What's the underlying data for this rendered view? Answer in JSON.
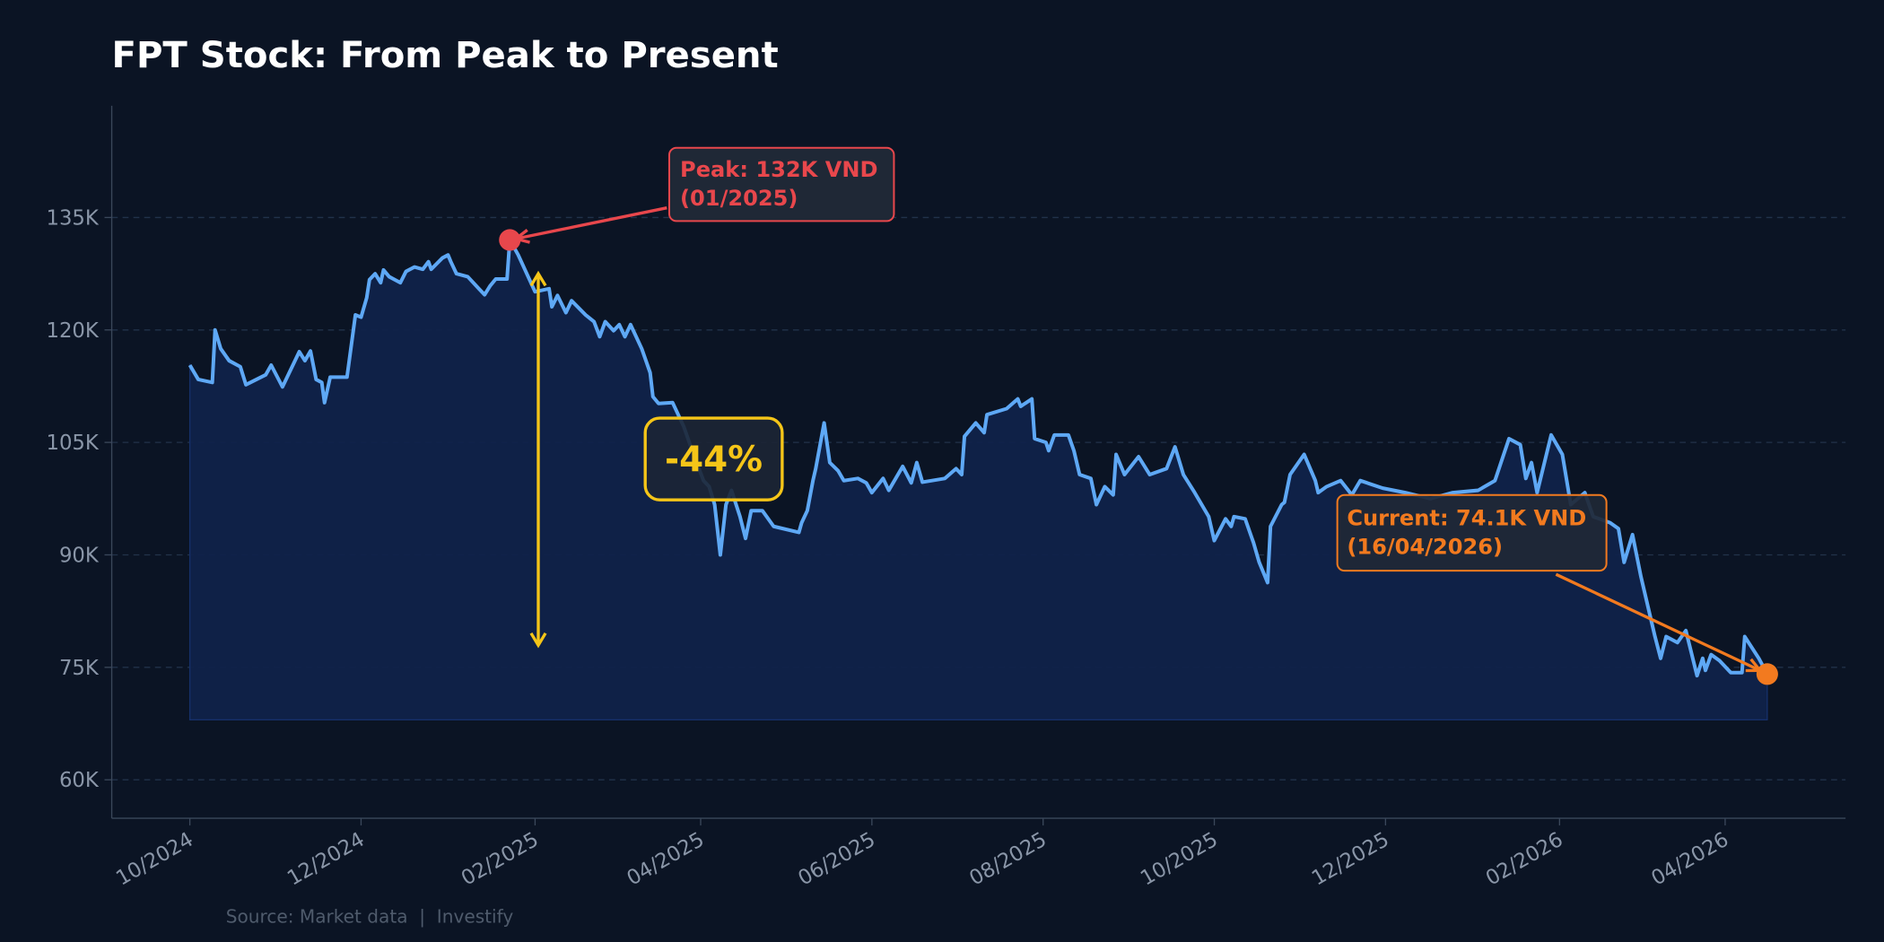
{
  "chart_data": {
    "type": "area",
    "title": "FPT Stock: From Peak to Present",
    "xlabel": "",
    "ylabel": "",
    "xlim": [
      "2024-09-03",
      "2026-05-13"
    ],
    "ylim": [
      55,
      150
    ],
    "area_baseline": 68,
    "grid": "horizontal dashed",
    "y_ticks": [
      60,
      75,
      90,
      105,
      120,
      135
    ],
    "y_tick_labels": [
      "60K",
      "75K",
      "90K",
      "105K",
      "120K",
      "135K"
    ],
    "x_ticks": [
      "2024-10-01",
      "2024-12-01",
      "2025-02-01",
      "2025-04-01",
      "2025-06-01",
      "2025-08-01",
      "2025-10-01",
      "2025-12-01",
      "2026-02-01",
      "2026-04-01"
    ],
    "x_tick_labels": [
      "10/2024",
      "12/2024",
      "02/2025",
      "04/2025",
      "06/2025",
      "08/2025",
      "10/2025",
      "12/2025",
      "02/2026",
      "04/2026"
    ],
    "units": "thousand VND",
    "series": [
      {
        "color": "#5ea8f5",
        "fill_color": "#10224a",
        "points": [
          [
            "2024-10-01",
            115.3
          ],
          [
            "2024-10-04",
            113.4
          ],
          [
            "2024-10-09",
            113.0
          ],
          [
            "2024-10-10",
            120.0
          ],
          [
            "2024-10-12",
            117.5
          ],
          [
            "2024-10-15",
            115.9
          ],
          [
            "2024-10-19",
            115.1
          ],
          [
            "2024-10-21",
            112.7
          ],
          [
            "2024-10-28",
            114.0
          ],
          [
            "2024-10-30",
            115.3
          ],
          [
            "2024-11-03",
            112.4
          ],
          [
            "2024-11-09",
            117.1
          ],
          [
            "2024-11-11",
            115.9
          ],
          [
            "2024-11-13",
            117.2
          ],
          [
            "2024-11-15",
            113.4
          ],
          [
            "2024-11-17",
            113.0
          ],
          [
            "2024-11-18",
            110.3
          ],
          [
            "2024-11-20",
            113.7
          ],
          [
            "2024-11-26",
            113.7
          ],
          [
            "2024-11-29",
            122.0
          ],
          [
            "2024-12-01",
            121.7
          ],
          [
            "2024-12-03",
            124.3
          ],
          [
            "2024-12-04",
            126.7
          ],
          [
            "2024-12-06",
            127.5
          ],
          [
            "2024-12-08",
            126.3
          ],
          [
            "2024-12-09",
            128.0
          ],
          [
            "2024-12-11",
            127.1
          ],
          [
            "2024-12-15",
            126.3
          ],
          [
            "2024-12-17",
            127.8
          ],
          [
            "2024-12-20",
            128.4
          ],
          [
            "2024-12-23",
            128.1
          ],
          [
            "2024-12-25",
            129.1
          ],
          [
            "2024-12-26",
            128.1
          ],
          [
            "2024-12-30",
            129.6
          ],
          [
            "2025-01-01",
            130.0
          ],
          [
            "2025-01-02",
            129.1
          ],
          [
            "2025-01-04",
            127.5
          ],
          [
            "2025-01-08",
            127.1
          ],
          [
            "2025-01-12",
            125.5
          ],
          [
            "2025-01-14",
            124.7
          ],
          [
            "2025-01-16",
            125.9
          ],
          [
            "2025-01-18",
            126.8
          ],
          [
            "2025-01-22",
            126.8
          ],
          [
            "2025-01-23",
            132.0
          ],
          [
            "2025-01-26",
            130.0
          ],
          [
            "2025-02-01",
            125.1
          ],
          [
            "2025-02-06",
            125.5
          ],
          [
            "2025-02-07",
            123.1
          ],
          [
            "2025-02-09",
            124.6
          ],
          [
            "2025-02-12",
            122.3
          ],
          [
            "2025-02-14",
            123.9
          ],
          [
            "2025-02-19",
            122.0
          ],
          [
            "2025-02-22",
            121.1
          ],
          [
            "2025-02-24",
            119.1
          ],
          [
            "2025-02-26",
            121.1
          ],
          [
            "2025-03-01",
            119.9
          ],
          [
            "2025-03-03",
            120.7
          ],
          [
            "2025-03-05",
            119.1
          ],
          [
            "2025-03-07",
            120.7
          ],
          [
            "2025-03-11",
            117.5
          ],
          [
            "2025-03-14",
            114.3
          ],
          [
            "2025-03-15",
            111.1
          ],
          [
            "2025-03-17",
            110.2
          ],
          [
            "2025-03-22",
            110.3
          ],
          [
            "2025-03-26",
            107.1
          ],
          [
            "2025-03-29",
            103.9
          ],
          [
            "2025-04-02",
            99.9
          ],
          [
            "2025-04-04",
            99.1
          ],
          [
            "2025-04-06",
            96.7
          ],
          [
            "2025-04-08",
            90.0
          ],
          [
            "2025-04-10",
            96.7
          ],
          [
            "2025-04-12",
            98.6
          ],
          [
            "2025-04-15",
            95.1
          ],
          [
            "2025-04-17",
            92.2
          ],
          [
            "2025-04-19",
            95.9
          ],
          [
            "2025-04-23",
            95.9
          ],
          [
            "2025-04-27",
            93.8
          ],
          [
            "2025-05-06",
            93.0
          ],
          [
            "2025-05-07",
            94.3
          ],
          [
            "2025-05-09",
            95.9
          ],
          [
            "2025-05-11",
            99.9
          ],
          [
            "2025-05-12",
            101.5
          ],
          [
            "2025-05-15",
            107.6
          ],
          [
            "2025-05-17",
            102.3
          ],
          [
            "2025-05-20",
            101.2
          ],
          [
            "2025-05-22",
            99.9
          ],
          [
            "2025-05-27",
            100.2
          ],
          [
            "2025-05-30",
            99.6
          ],
          [
            "2025-06-01",
            98.3
          ],
          [
            "2025-06-05",
            100.2
          ],
          [
            "2025-06-07",
            98.6
          ],
          [
            "2025-06-12",
            101.8
          ],
          [
            "2025-06-15",
            99.6
          ],
          [
            "2025-06-17",
            102.3
          ],
          [
            "2025-06-19",
            99.7
          ],
          [
            "2025-06-27",
            100.2
          ],
          [
            "2025-07-01",
            101.5
          ],
          [
            "2025-07-03",
            100.7
          ],
          [
            "2025-07-04",
            105.8
          ],
          [
            "2025-07-08",
            107.6
          ],
          [
            "2025-07-11",
            106.3
          ],
          [
            "2025-07-12",
            108.7
          ],
          [
            "2025-07-19",
            109.5
          ],
          [
            "2025-07-23",
            110.8
          ],
          [
            "2025-07-24",
            109.8
          ],
          [
            "2025-07-28",
            110.8
          ],
          [
            "2025-07-29",
            105.5
          ],
          [
            "2025-08-02",
            105.0
          ],
          [
            "2025-08-03",
            103.9
          ],
          [
            "2025-08-05",
            106.0
          ],
          [
            "2025-08-10",
            106.0
          ],
          [
            "2025-08-12",
            103.9
          ],
          [
            "2025-08-14",
            100.7
          ],
          [
            "2025-08-18",
            100.2
          ],
          [
            "2025-08-20",
            96.7
          ],
          [
            "2025-08-23",
            99.1
          ],
          [
            "2025-08-26",
            98.0
          ],
          [
            "2025-08-27",
            103.4
          ],
          [
            "2025-08-30",
            100.7
          ],
          [
            "2025-09-04",
            103.1
          ],
          [
            "2025-09-08",
            100.7
          ],
          [
            "2025-09-14",
            101.5
          ],
          [
            "2025-09-17",
            104.4
          ],
          [
            "2025-09-20",
            100.7
          ],
          [
            "2025-09-24",
            98.3
          ],
          [
            "2025-09-29",
            95.1
          ],
          [
            "2025-10-01",
            91.9
          ],
          [
            "2025-10-05",
            94.8
          ],
          [
            "2025-10-07",
            93.8
          ],
          [
            "2025-10-08",
            95.1
          ],
          [
            "2025-10-12",
            94.8
          ],
          [
            "2025-10-15",
            91.6
          ],
          [
            "2025-10-17",
            89.0
          ],
          [
            "2025-10-20",
            86.3
          ],
          [
            "2025-10-21",
            93.8
          ],
          [
            "2025-10-25",
            96.7
          ],
          [
            "2025-10-26",
            97.0
          ],
          [
            "2025-10-28",
            100.7
          ],
          [
            "2025-11-02",
            103.4
          ],
          [
            "2025-11-06",
            99.9
          ],
          [
            "2025-11-07",
            98.3
          ],
          [
            "2025-11-10",
            99.1
          ],
          [
            "2025-11-15",
            99.9
          ],
          [
            "2025-11-19",
            98.0
          ],
          [
            "2025-11-22",
            99.9
          ],
          [
            "2025-11-30",
            98.9
          ],
          [
            "2025-12-08",
            98.3
          ],
          [
            "2025-12-17",
            97.5
          ],
          [
            "2025-12-25",
            98.3
          ],
          [
            "2026-01-03",
            98.6
          ],
          [
            "2026-01-09",
            99.9
          ],
          [
            "2026-01-14",
            105.5
          ],
          [
            "2026-01-18",
            104.7
          ],
          [
            "2026-01-20",
            100.2
          ],
          [
            "2026-01-22",
            102.3
          ],
          [
            "2026-01-24",
            98.3
          ],
          [
            "2026-01-29",
            106.0
          ],
          [
            "2026-02-02",
            103.4
          ],
          [
            "2026-02-05",
            96.7
          ],
          [
            "2026-02-10",
            98.3
          ],
          [
            "2026-02-13",
            95.1
          ],
          [
            "2026-02-19",
            94.3
          ],
          [
            "2026-02-22",
            93.5
          ],
          [
            "2026-02-24",
            89.0
          ],
          [
            "2026-02-27",
            92.7
          ],
          [
            "2026-03-02",
            87.1
          ],
          [
            "2026-03-05",
            82.3
          ],
          [
            "2026-03-07",
            79.1
          ],
          [
            "2026-03-09",
            76.2
          ],
          [
            "2026-03-11",
            79.1
          ],
          [
            "2026-03-15",
            78.3
          ],
          [
            "2026-03-18",
            79.9
          ],
          [
            "2026-03-22",
            73.9
          ],
          [
            "2026-03-24",
            76.2
          ],
          [
            "2026-03-25",
            74.6
          ],
          [
            "2026-03-27",
            76.7
          ],
          [
            "2026-03-30",
            75.9
          ],
          [
            "2026-04-03",
            74.3
          ],
          [
            "2026-04-07",
            74.3
          ],
          [
            "2026-04-08",
            79.1
          ],
          [
            "2026-04-13",
            76.2
          ],
          [
            "2026-04-16",
            74.1
          ]
        ]
      }
    ],
    "annotations": {
      "peak": {
        "date": "2025-01-23",
        "value": 132,
        "line1": "Peak: 132K VND",
        "line2": "(01/2025)",
        "color": "#e8474c"
      },
      "current": {
        "date": "2026-04-16",
        "value": 74.1,
        "line1": "Current: 74.1K VND",
        "line2": "(16/04/2026)",
        "color": "#f27a1f"
      },
      "drawdown": {
        "label": "-44%",
        "from": 132,
        "to": 74.1,
        "color": "#f5c518"
      }
    },
    "source": "Source: Market data  |  Investify"
  },
  "colors": {
    "background": "#0b1424",
    "text": "#ffffff",
    "axis": "#3a475a"
  }
}
